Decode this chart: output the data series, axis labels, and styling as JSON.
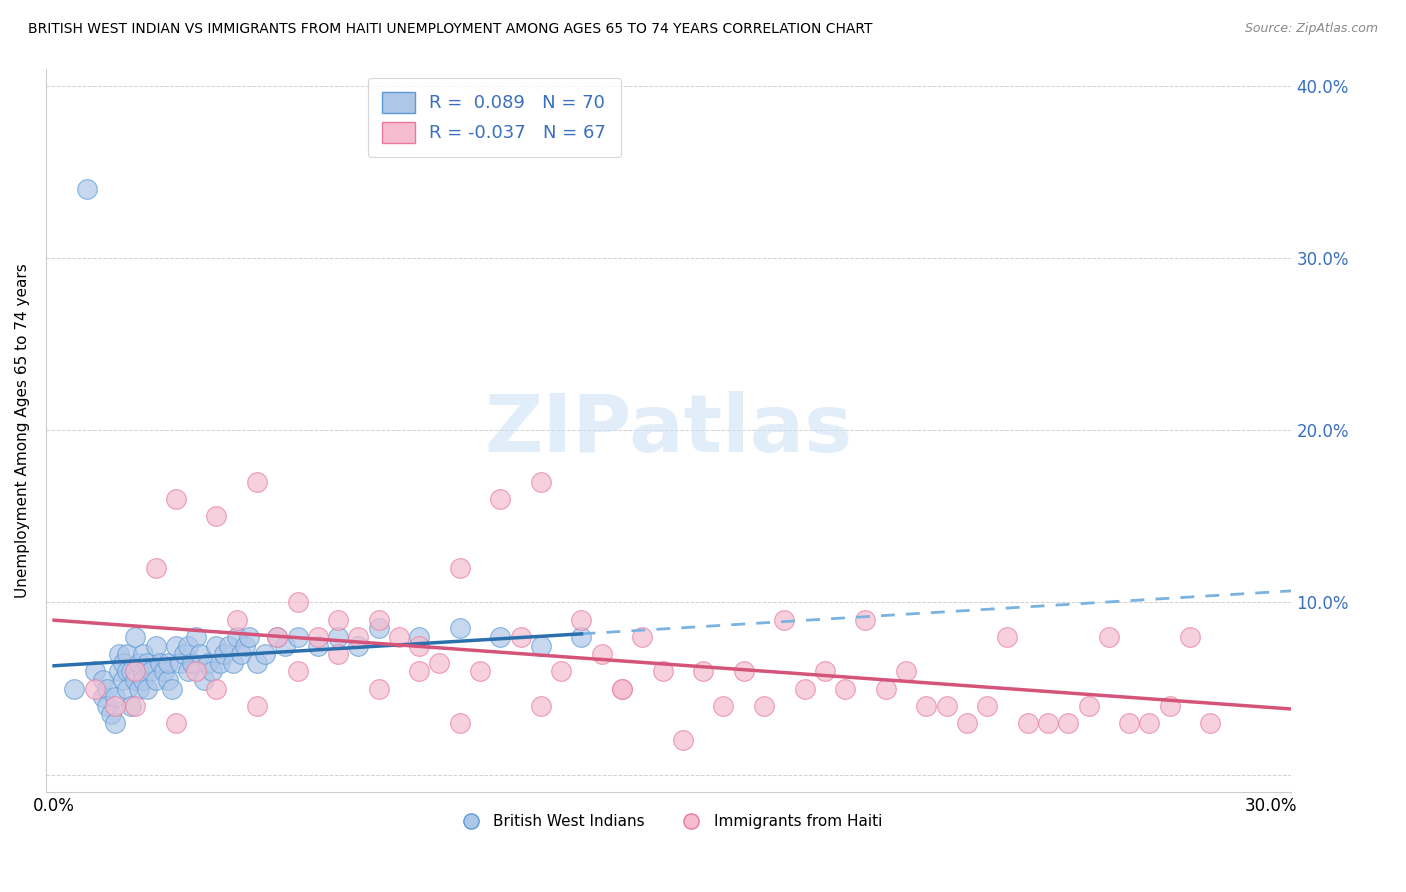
{
  "title": "BRITISH WEST INDIAN VS IMMIGRANTS FROM HAITI UNEMPLOYMENT AMONG AGES 65 TO 74 YEARS CORRELATION CHART",
  "source": "Source: ZipAtlas.com",
  "ylabel": "Unemployment Among Ages 65 to 74 years",
  "xlim": [
    -0.002,
    0.305
  ],
  "ylim": [
    -0.01,
    0.41
  ],
  "blue_R": 0.089,
  "blue_N": 70,
  "pink_R": -0.037,
  "pink_N": 67,
  "blue_color": "#aec6e8",
  "pink_color": "#f5bcd0",
  "blue_scatter_edge": "#5b9bd5",
  "pink_scatter_edge": "#e8799e",
  "blue_line_color": "#2c6fad",
  "pink_line_color": "#d4547a",
  "blue_dash_color": "#7ab3e0",
  "legend_text_color": "#3a6fbf",
  "watermark_color": "#cde4f5",
  "blue_points_x": [
    0.005,
    0.008,
    0.01,
    0.012,
    0.012,
    0.013,
    0.013,
    0.014,
    0.015,
    0.015,
    0.016,
    0.016,
    0.017,
    0.017,
    0.018,
    0.018,
    0.018,
    0.019,
    0.019,
    0.02,
    0.02,
    0.021,
    0.021,
    0.022,
    0.022,
    0.022,
    0.023,
    0.023,
    0.024,
    0.025,
    0.025,
    0.026,
    0.027,
    0.028,
    0.028,
    0.029,
    0.03,
    0.031,
    0.032,
    0.033,
    0.033,
    0.034,
    0.035,
    0.036,
    0.037,
    0.038,
    0.039,
    0.04,
    0.041,
    0.042,
    0.043,
    0.044,
    0.045,
    0.046,
    0.047,
    0.048,
    0.05,
    0.052,
    0.055,
    0.057,
    0.06,
    0.065,
    0.07,
    0.075,
    0.08,
    0.09,
    0.1,
    0.11,
    0.12,
    0.13
  ],
  "blue_points_y": [
    0.05,
    0.34,
    0.06,
    0.055,
    0.045,
    0.05,
    0.04,
    0.035,
    0.045,
    0.03,
    0.07,
    0.06,
    0.065,
    0.055,
    0.06,
    0.07,
    0.05,
    0.06,
    0.04,
    0.08,
    0.055,
    0.065,
    0.05,
    0.07,
    0.06,
    0.055,
    0.065,
    0.05,
    0.06,
    0.075,
    0.055,
    0.065,
    0.06,
    0.055,
    0.065,
    0.05,
    0.075,
    0.065,
    0.07,
    0.06,
    0.075,
    0.065,
    0.08,
    0.07,
    0.055,
    0.065,
    0.06,
    0.075,
    0.065,
    0.07,
    0.075,
    0.065,
    0.08,
    0.07,
    0.075,
    0.08,
    0.065,
    0.07,
    0.08,
    0.075,
    0.08,
    0.075,
    0.08,
    0.075,
    0.085,
    0.08,
    0.085,
    0.08,
    0.075,
    0.08
  ],
  "pink_points_x": [
    0.01,
    0.015,
    0.02,
    0.025,
    0.03,
    0.035,
    0.04,
    0.045,
    0.05,
    0.055,
    0.06,
    0.065,
    0.07,
    0.075,
    0.08,
    0.085,
    0.09,
    0.095,
    0.1,
    0.105,
    0.11,
    0.115,
    0.12,
    0.125,
    0.13,
    0.135,
    0.14,
    0.145,
    0.15,
    0.155,
    0.16,
    0.165,
    0.17,
    0.175,
    0.18,
    0.185,
    0.19,
    0.195,
    0.2,
    0.205,
    0.21,
    0.215,
    0.22,
    0.225,
    0.23,
    0.235,
    0.24,
    0.245,
    0.25,
    0.255,
    0.26,
    0.265,
    0.27,
    0.275,
    0.28,
    0.285,
    0.02,
    0.03,
    0.04,
    0.05,
    0.06,
    0.07,
    0.08,
    0.09,
    0.1,
    0.12,
    0.14
  ],
  "pink_points_y": [
    0.05,
    0.04,
    0.06,
    0.12,
    0.16,
    0.06,
    0.15,
    0.09,
    0.17,
    0.08,
    0.1,
    0.08,
    0.09,
    0.08,
    0.09,
    0.08,
    0.075,
    0.065,
    0.12,
    0.06,
    0.16,
    0.08,
    0.17,
    0.06,
    0.09,
    0.07,
    0.05,
    0.08,
    0.06,
    0.02,
    0.06,
    0.04,
    0.06,
    0.04,
    0.09,
    0.05,
    0.06,
    0.05,
    0.09,
    0.05,
    0.06,
    0.04,
    0.04,
    0.03,
    0.04,
    0.08,
    0.03,
    0.03,
    0.03,
    0.04,
    0.08,
    0.03,
    0.03,
    0.04,
    0.08,
    0.03,
    0.04,
    0.03,
    0.05,
    0.04,
    0.06,
    0.07,
    0.05,
    0.06,
    0.03,
    0.04,
    0.05
  ]
}
